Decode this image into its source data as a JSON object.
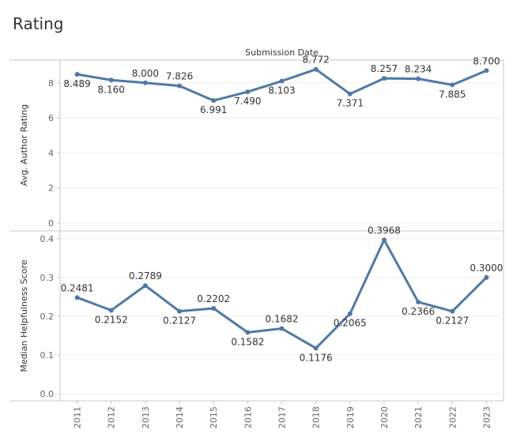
{
  "page": {
    "title": "Rating"
  },
  "chart_data": {
    "type": "line",
    "title": "Rating",
    "column_header": "Submission Date",
    "categories": [
      "2011",
      "2012",
      "2013",
      "2014",
      "2015",
      "2016",
      "2017",
      "2018",
      "2019",
      "2020",
      "2021",
      "2022",
      "2023"
    ],
    "colors": {
      "line": "#4e79a7",
      "axis": "#c8c8c8",
      "grid": "#efefef",
      "text": "#333333",
      "tick": "#666666"
    },
    "grid": true,
    "panels": [
      {
        "ylabel": "Avg. Author Rating",
        "ylim": [
          0,
          9.3
        ],
        "yticks": [
          0,
          2,
          4,
          6,
          8
        ],
        "ytick_labels": [
          "0",
          "2",
          "4",
          "6",
          "8"
        ],
        "series": [
          {
            "values": [
              8.489,
              8.16,
              8.0,
              7.826,
              6.991,
              7.49,
              8.103,
              8.772,
              7.371,
              8.257,
              8.234,
              7.885,
              8.7
            ],
            "labels": [
              "8.489",
              "8.160",
              "8.000",
              "7.826",
              "6.991",
              "7.490",
              "8.103",
              "8.772",
              "7.371",
              "8.257",
              "8.234",
              "7.885",
              "8.700"
            ],
            "label_pos": [
              "below",
              "below",
              "above",
              "above",
              "below",
              "below",
              "below",
              "above",
              "below",
              "above",
              "above",
              "below",
              "above"
            ]
          }
        ]
      },
      {
        "ylabel": "Median Helpfulness Score",
        "ylim": [
          0,
          0.42
        ],
        "yticks": [
          0,
          0.1,
          0.2,
          0.3,
          0.4
        ],
        "ytick_labels": [
          "0.0",
          "0.1",
          "0.2",
          "0.3",
          "0.4"
        ],
        "series": [
          {
            "values": [
              0.2481,
              0.2152,
              0.2789,
              0.2127,
              0.2202,
              0.1582,
              0.1682,
              0.1176,
              0.2065,
              0.3968,
              0.2366,
              0.2127,
              0.3
            ],
            "labels": [
              "0.2481",
              "0.2152",
              "0.2789",
              "0.2127",
              "0.2202",
              "0.1582",
              "0.1682",
              "0.1176",
              "0.2065",
              "0.3968",
              "0.2366",
              "0.2127",
              "0.3000"
            ],
            "label_pos": [
              "above",
              "below",
              "above",
              "below",
              "above",
              "below",
              "above",
              "below",
              "below",
              "above",
              "below",
              "below",
              "above"
            ]
          }
        ]
      }
    ]
  }
}
